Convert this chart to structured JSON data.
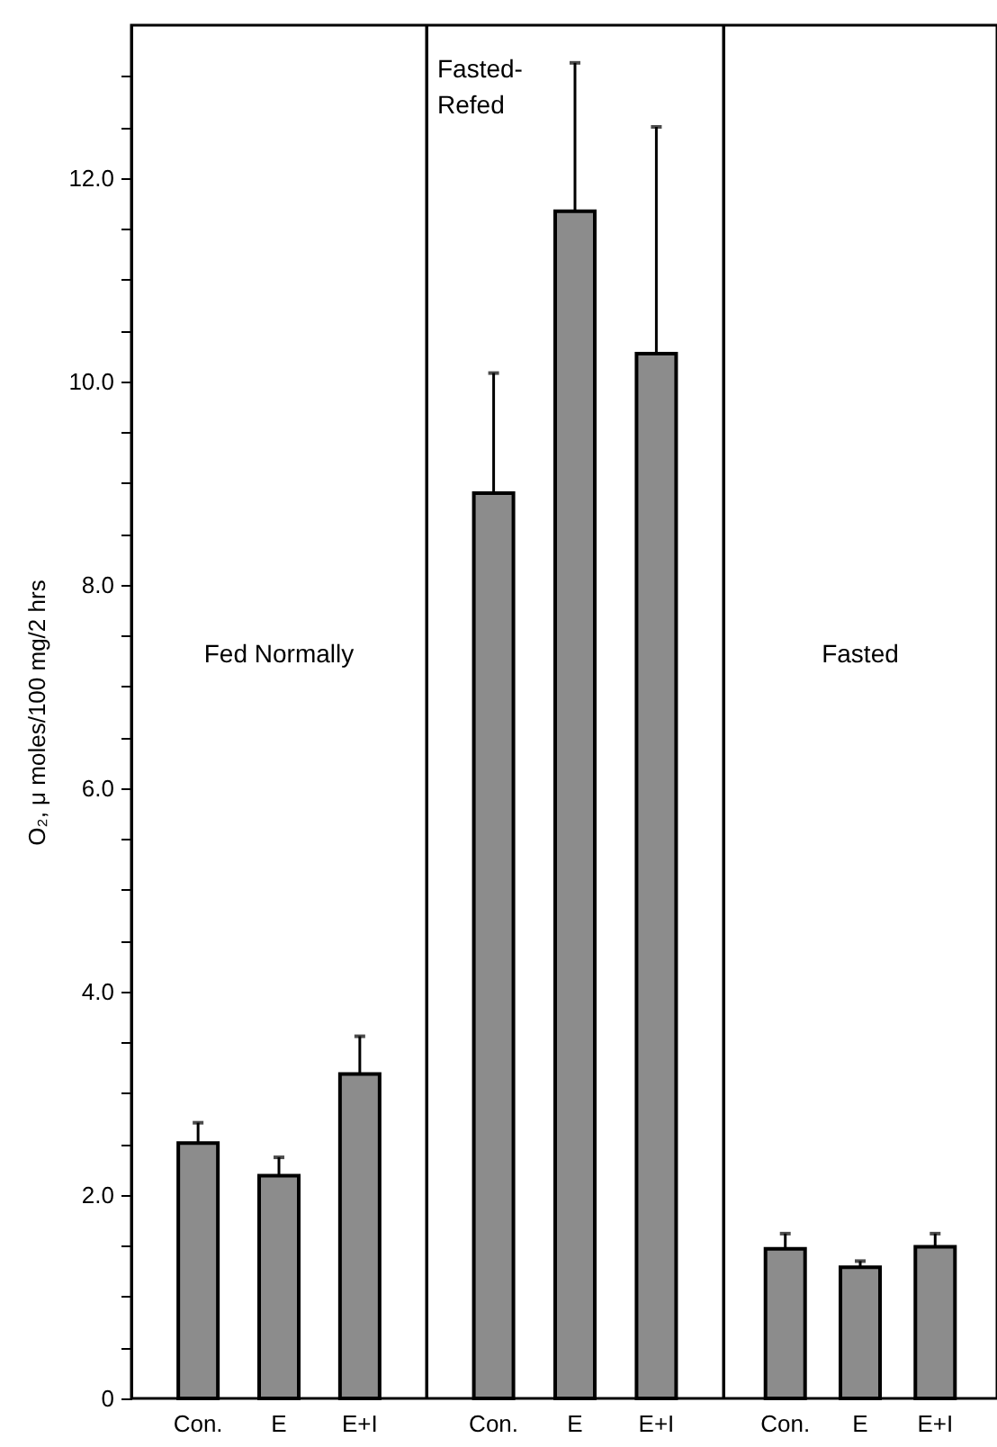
{
  "chart_data": [
    {
      "type": "bar",
      "ylabel": "O₂, μ moles/100 mg/2 hrs",
      "categories": [
        "Con.",
        "E",
        "E+I"
      ],
      "values": [
        2.51,
        2.19,
        3.19
      ],
      "errors": [
        [
          2.51,
          2.71
        ],
        [
          2.19,
          2.37
        ],
        [
          3.19,
          3.56
        ]
      ],
      "color": "#8c8c8c",
      "annotations": [
        "Fed  Normally"
      ],
      "ylim": [
        0,
        13.5
      ],
      "yticks": [
        0,
        {
          "value": 0.5,
          "label": null
        },
        {
          "value": 1,
          "label": null
        },
        {
          "value": 1.5,
          "label": null
        },
        {
          "value": 2,
          "label": "2.0"
        },
        {
          "value": 2.5,
          "label": null
        },
        {
          "value": 3,
          "label": null
        },
        {
          "value": 3.5,
          "label": null
        },
        {
          "value": 4,
          "label": "4.0"
        },
        {
          "value": 4.5,
          "label": null
        },
        {
          "value": 5,
          "label": null
        },
        {
          "value": 5.5,
          "label": null
        },
        {
          "value": 6,
          "label": "6.0"
        },
        {
          "value": 6.5,
          "label": null
        },
        {
          "value": 7,
          "label": null
        },
        {
          "value": 7.5,
          "label": null
        },
        {
          "value": 8,
          "label": "8.0"
        },
        {
          "value": 8.5,
          "label": null
        },
        {
          "value": 9,
          "label": null
        },
        {
          "value": 9.5,
          "label": null
        },
        {
          "value": 10,
          "label": "10.0"
        },
        {
          "value": 10.5,
          "label": null
        },
        {
          "value": 11,
          "label": null
        },
        {
          "value": 11.5,
          "label": null
        },
        {
          "value": 12,
          "label": "12.0"
        },
        {
          "value": 12.5,
          "label": null
        },
        {
          "value": 13,
          "label": null
        }
      ]
    },
    {
      "type": "bar",
      "categories": [
        "Con.",
        "E",
        "E+I"
      ],
      "values": [
        8.9,
        11.67,
        10.27
      ],
      "errors": [
        [
          8.9,
          10.08
        ],
        [
          11.67,
          13.13
        ],
        [
          10.27,
          12.5
        ]
      ],
      "color": "#8c8c8c",
      "annotations": [
        "Fasted-Refed"
      ],
      "ylim": [
        0,
        13.5
      ],
      "tick_labels": "x"
    },
    {
      "type": "bar",
      "categories": [
        "Con.",
        "E",
        "E+I"
      ],
      "values": [
        1.47,
        1.29,
        1.49
      ],
      "errors": [
        [
          1.47,
          1.62
        ],
        [
          1.29,
          1.35
        ],
        [
          1.49,
          1.62
        ]
      ],
      "color": "#8c8c8c",
      "annotations": [
        "Fasted"
      ],
      "ylim": [
        0,
        13.5
      ],
      "tick_labels": "x"
    }
  ]
}
